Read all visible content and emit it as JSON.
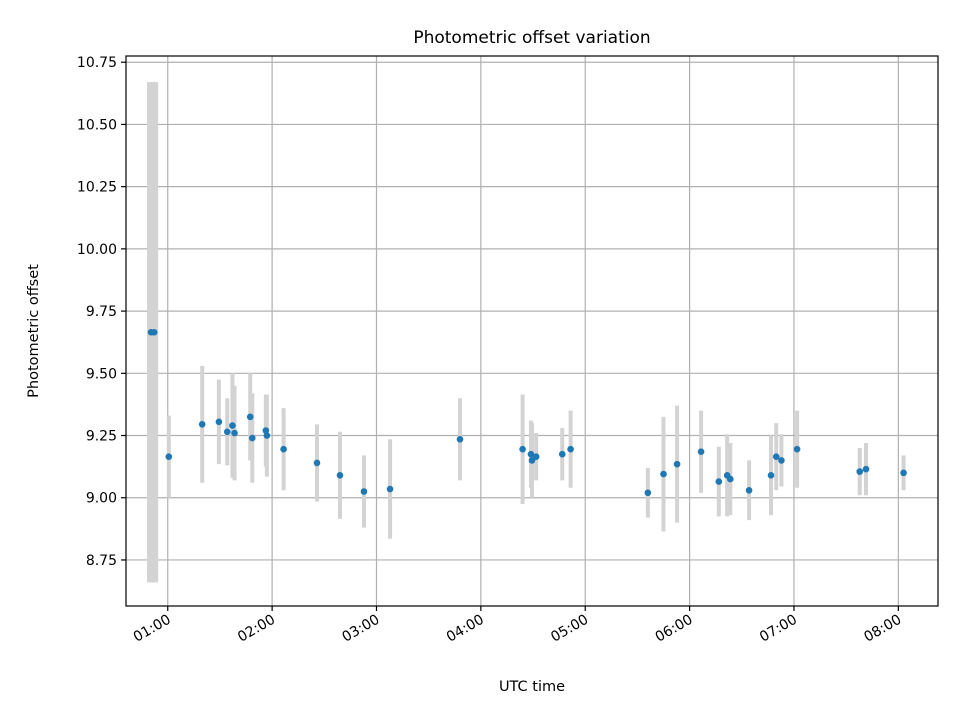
{
  "chart_data": {
    "type": "scatter",
    "title": "Photometric offset variation",
    "xlabel": "UTC time",
    "ylabel": "Photometric offset",
    "grid": true,
    "x_unit": "hours UTC",
    "xlim": [
      0.6,
      8.38
    ],
    "ylim": [
      8.565,
      10.775
    ],
    "x_ticks": [
      {
        "value": 1,
        "label": "01:00"
      },
      {
        "value": 2,
        "label": "02:00"
      },
      {
        "value": 3,
        "label": "03:00"
      },
      {
        "value": 4,
        "label": "04:00"
      },
      {
        "value": 5,
        "label": "05:00"
      },
      {
        "value": 6,
        "label": "06:00"
      },
      {
        "value": 7,
        "label": "07:00"
      },
      {
        "value": 8,
        "label": "08:00"
      }
    ],
    "y_ticks": [
      {
        "value": 8.75,
        "label": "8.75"
      },
      {
        "value": 9.0,
        "label": "9.00"
      },
      {
        "value": 9.25,
        "label": "9.25"
      },
      {
        "value": 9.5,
        "label": "9.50"
      },
      {
        "value": 9.75,
        "label": "9.75"
      },
      {
        "value": 10.0,
        "label": "10.00"
      },
      {
        "value": 10.25,
        "label": "10.25"
      },
      {
        "value": 10.5,
        "label": "10.50"
      },
      {
        "value": 10.75,
        "label": "10.75"
      }
    ],
    "colors": {
      "point": "#1f77b4",
      "errorbar": "#d3d3d3",
      "grid": "#b0b0b0",
      "axis": "#000000"
    },
    "series": [
      {
        "name": "offset",
        "points": [
          {
            "x": 0.84,
            "y": 9.665,
            "err": 1.005
          },
          {
            "x": 0.87,
            "y": 9.665,
            "err": 1.005
          },
          {
            "x": 1.01,
            "y": 9.165,
            "err": 0.165
          },
          {
            "x": 1.33,
            "y": 9.295,
            "err": 0.235
          },
          {
            "x": 1.49,
            "y": 9.305,
            "err": 0.17
          },
          {
            "x": 1.57,
            "y": 9.265,
            "err": 0.135
          },
          {
            "x": 1.62,
            "y": 9.29,
            "err": 0.21
          },
          {
            "x": 1.64,
            "y": 9.26,
            "err": 0.19
          },
          {
            "x": 1.79,
            "y": 9.325,
            "err": 0.175
          },
          {
            "x": 1.81,
            "y": 9.24,
            "err": 0.18
          },
          {
            "x": 1.94,
            "y": 9.27,
            "err": 0.145
          },
          {
            "x": 1.95,
            "y": 9.25,
            "err": 0.165
          },
          {
            "x": 2.11,
            "y": 9.195,
            "err": 0.165
          },
          {
            "x": 2.43,
            "y": 9.14,
            "err": 0.155
          },
          {
            "x": 2.65,
            "y": 9.09,
            "err": 0.175
          },
          {
            "x": 2.88,
            "y": 9.025,
            "err": 0.145
          },
          {
            "x": 3.13,
            "y": 9.035,
            "err": 0.2
          },
          {
            "x": 3.8,
            "y": 9.235,
            "err": 0.165
          },
          {
            "x": 4.4,
            "y": 9.195,
            "err": 0.22
          },
          {
            "x": 4.48,
            "y": 9.175,
            "err": 0.135
          },
          {
            "x": 4.49,
            "y": 9.15,
            "err": 0.15
          },
          {
            "x": 4.53,
            "y": 9.165,
            "err": 0.095
          },
          {
            "x": 4.78,
            "y": 9.175,
            "err": 0.105
          },
          {
            "x": 4.86,
            "y": 9.195,
            "err": 0.155
          },
          {
            "x": 5.6,
            "y": 9.02,
            "err": 0.1
          },
          {
            "x": 5.75,
            "y": 9.095,
            "err": 0.23
          },
          {
            "x": 5.88,
            "y": 9.135,
            "err": 0.235
          },
          {
            "x": 6.11,
            "y": 9.185,
            "err": 0.165
          },
          {
            "x": 6.28,
            "y": 9.065,
            "err": 0.14
          },
          {
            "x": 6.36,
            "y": 9.09,
            "err": 0.165
          },
          {
            "x": 6.39,
            "y": 9.075,
            "err": 0.145
          },
          {
            "x": 6.57,
            "y": 9.03,
            "err": 0.12
          },
          {
            "x": 6.78,
            "y": 9.09,
            "err": 0.16
          },
          {
            "x": 6.83,
            "y": 9.165,
            "err": 0.135
          },
          {
            "x": 6.88,
            "y": 9.15,
            "err": 0.105
          },
          {
            "x": 7.03,
            "y": 9.195,
            "err": 0.155
          },
          {
            "x": 7.63,
            "y": 9.105,
            "err": 0.095
          },
          {
            "x": 7.69,
            "y": 9.115,
            "err": 0.105
          },
          {
            "x": 8.05,
            "y": 9.1,
            "err": 0.07
          }
        ]
      }
    ]
  }
}
